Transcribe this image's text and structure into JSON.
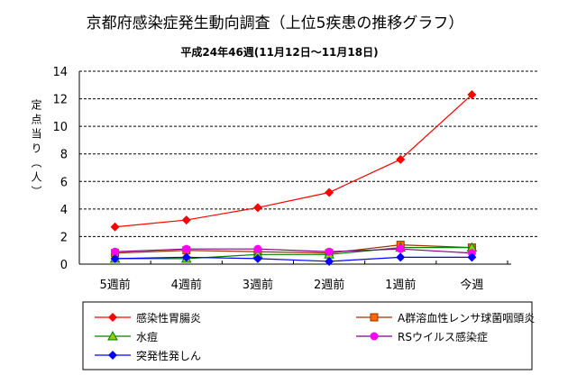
{
  "chart_data": {
    "type": "line",
    "title": "京都府感染症発生動向調査（上位5疾患の推移グラフ）",
    "subtitle": "平成24年46週(11月12日～11月18日)",
    "ylabel": "定点当り（人）",
    "xlabel": "",
    "ylim": [
      0,
      14
    ],
    "yticks": [
      "0",
      "2",
      "4",
      "6",
      "8",
      "10",
      "12",
      "14"
    ],
    "grid": true,
    "legend_position": "bottom",
    "categories": [
      "5週前",
      "4週前",
      "3週前",
      "2週前",
      "1週前",
      "今週"
    ],
    "series": [
      {
        "name": "感染性胃腸炎",
        "color": "#ff0000",
        "line": "#ff0000",
        "marker": "diamond",
        "values": [
          2.7,
          3.2,
          4.1,
          5.2,
          7.6,
          12.3
        ]
      },
      {
        "name": "A群溶血性レンサ球菌咽頭炎",
        "color": "#ff6600",
        "line": "#993300",
        "marker": "square",
        "values": [
          0.8,
          1.0,
          0.9,
          0.8,
          1.4,
          1.2
        ]
      },
      {
        "name": "水痘",
        "color": "#99cc00",
        "line": "#008000",
        "marker": "triangle",
        "values": [
          0.4,
          0.4,
          0.7,
          0.7,
          1.2,
          1.2
        ]
      },
      {
        "name": "RSウイルス感染症",
        "color": "#ff00ff",
        "line": "#800080",
        "marker": "circle",
        "values": [
          0.9,
          1.1,
          1.1,
          0.9,
          1.1,
          0.8
        ]
      },
      {
        "name": "突発性発しん",
        "color": "#0000ff",
        "line": "#0000ff",
        "marker": "diamond",
        "values": [
          0.4,
          0.5,
          0.4,
          0.2,
          0.5,
          0.5
        ]
      }
    ]
  }
}
